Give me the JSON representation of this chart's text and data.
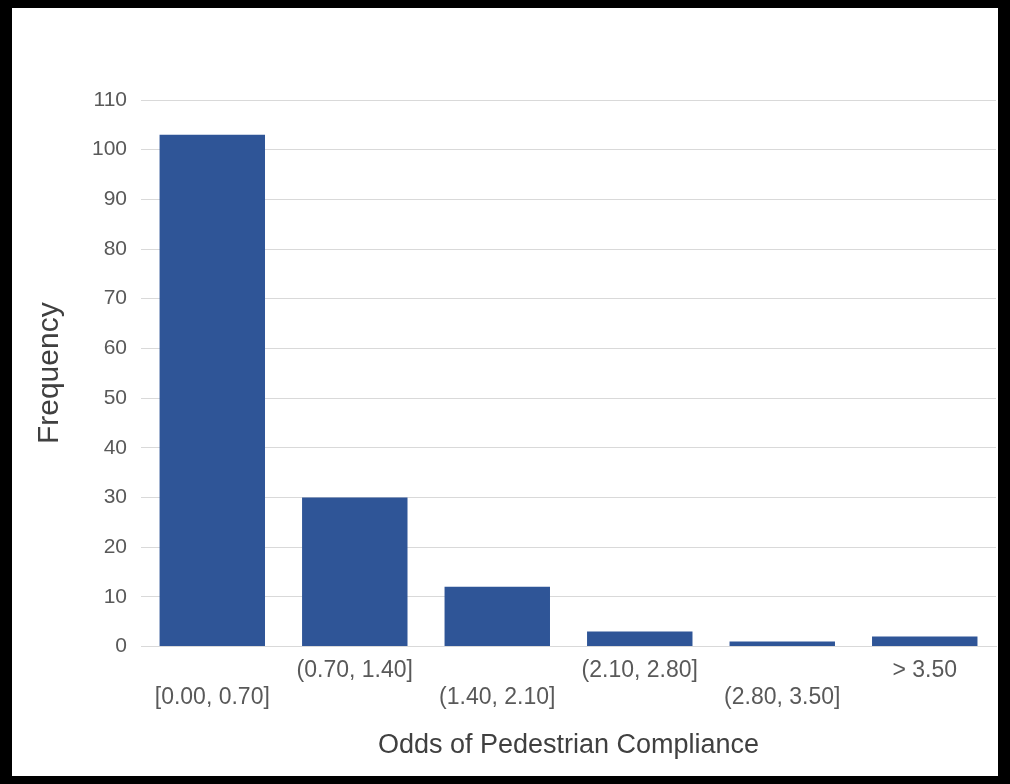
{
  "chart_data": {
    "type": "bar",
    "xlabel": "Odds of Pedestrian Compliance",
    "ylabel": "Frequency",
    "categories": [
      "[0.00, 0.70]",
      "(0.70, 1.40]",
      "(1.40, 2.10]",
      "(2.10, 2.80]",
      "(2.80, 3.50]",
      "> 3.50"
    ],
    "values": [
      103,
      30,
      12,
      3,
      1,
      2
    ],
    "color": "#2f5597",
    "ylim": [
      0,
      110
    ],
    "yticks": [
      0,
      10,
      20,
      30,
      40,
      50,
      60,
      70,
      80,
      90,
      100,
      110
    ],
    "grid": "y",
    "legend": false
  }
}
